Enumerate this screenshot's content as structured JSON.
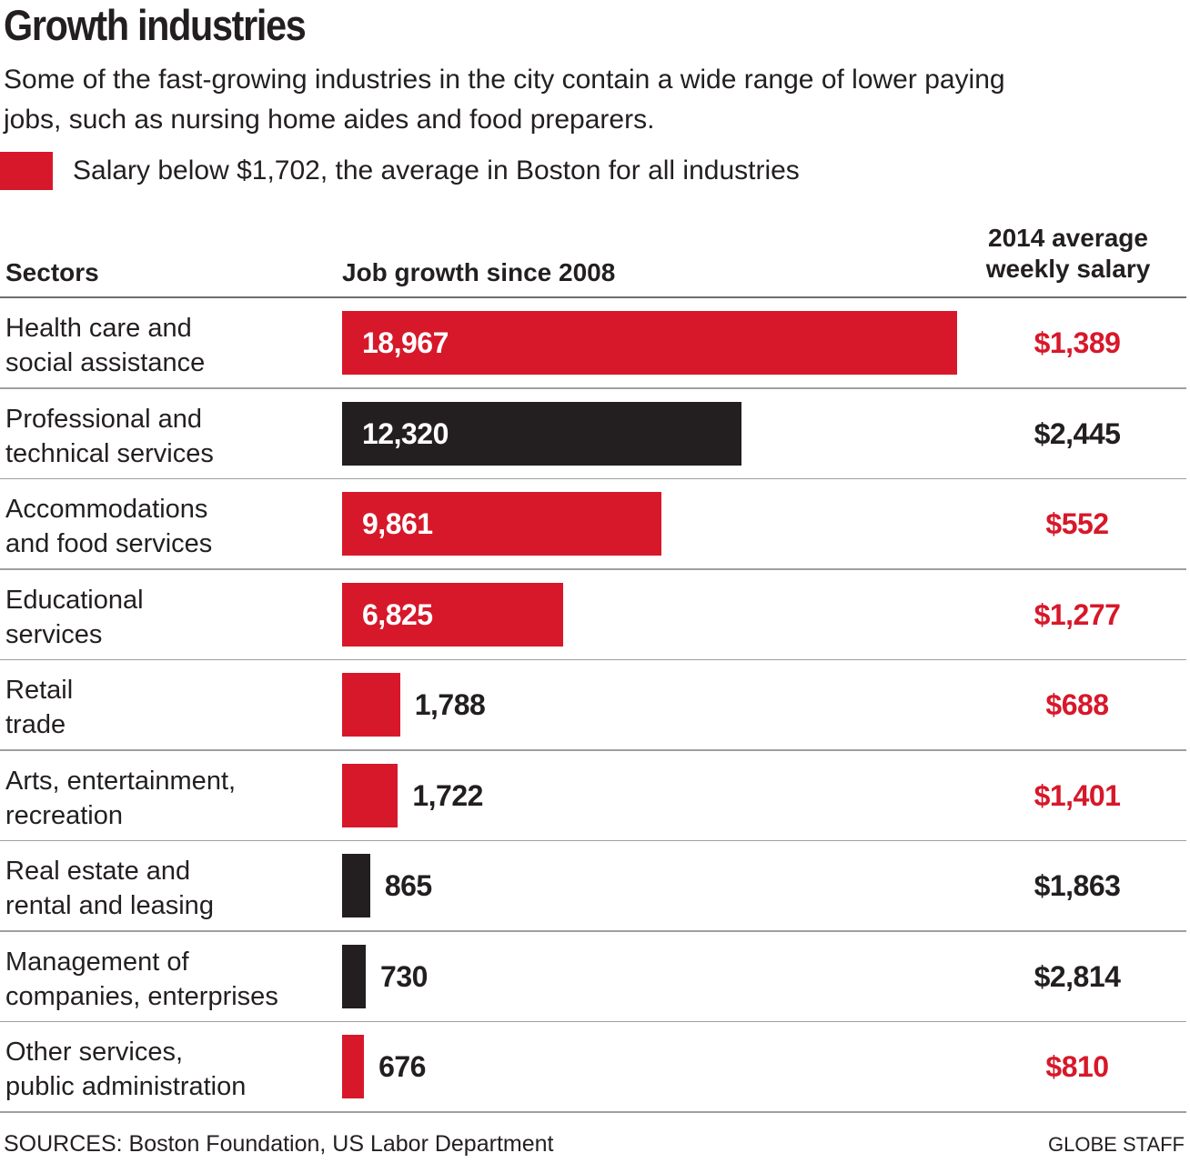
{
  "title": "Growth industries",
  "subtitle": "Some of the fast-growing industries in the city contain a wide range of lower paying jobs, such as nursing home aides and food preparers.",
  "legend": {
    "label": "Salary below $1,702, the average in Boston for all industries",
    "color": "#d7182a"
  },
  "headers": {
    "sectors": "Sectors",
    "growth": "Job growth since 2008",
    "salary": "2014 average weekly salary"
  },
  "colors": {
    "below_average": "#d7182a",
    "above_average": "#231f20"
  },
  "chart_data": {
    "type": "bar",
    "orientation": "horizontal",
    "categories": [
      "Health care and\nsocial assistance",
      "Professional and\ntechnical services",
      "Accommodations\nand food services",
      "Educational\nservices",
      "Retail\ntrade",
      "Arts, entertainment,\nrecreation",
      "Real estate and\nrental and leasing",
      "Management of\ncompanies, enterprises",
      "Other services,\npublic administration"
    ],
    "values": [
      18967,
      12320,
      9861,
      6825,
      1788,
      1722,
      865,
      730,
      676
    ],
    "value_labels": [
      "18,967",
      "12,320",
      "9,861",
      "6,825",
      "1,788",
      "1,722",
      "865",
      "730",
      "676"
    ],
    "salary_labels": [
      "$1,389",
      "$2,445",
      "$552",
      "$1,277",
      "$688",
      "$1,401",
      "$1,863",
      "$2,814",
      "$810"
    ],
    "salary_values": [
      1389,
      2445,
      552,
      1277,
      688,
      1401,
      1863,
      2814,
      810
    ],
    "below_average": [
      true,
      false,
      true,
      true,
      true,
      true,
      false,
      false,
      true
    ],
    "xlim": [
      0,
      18967
    ]
  },
  "footer": {
    "source": "SOURCES: Boston Foundation, US Labor Department",
    "credit": "GLOBE STAFF"
  }
}
